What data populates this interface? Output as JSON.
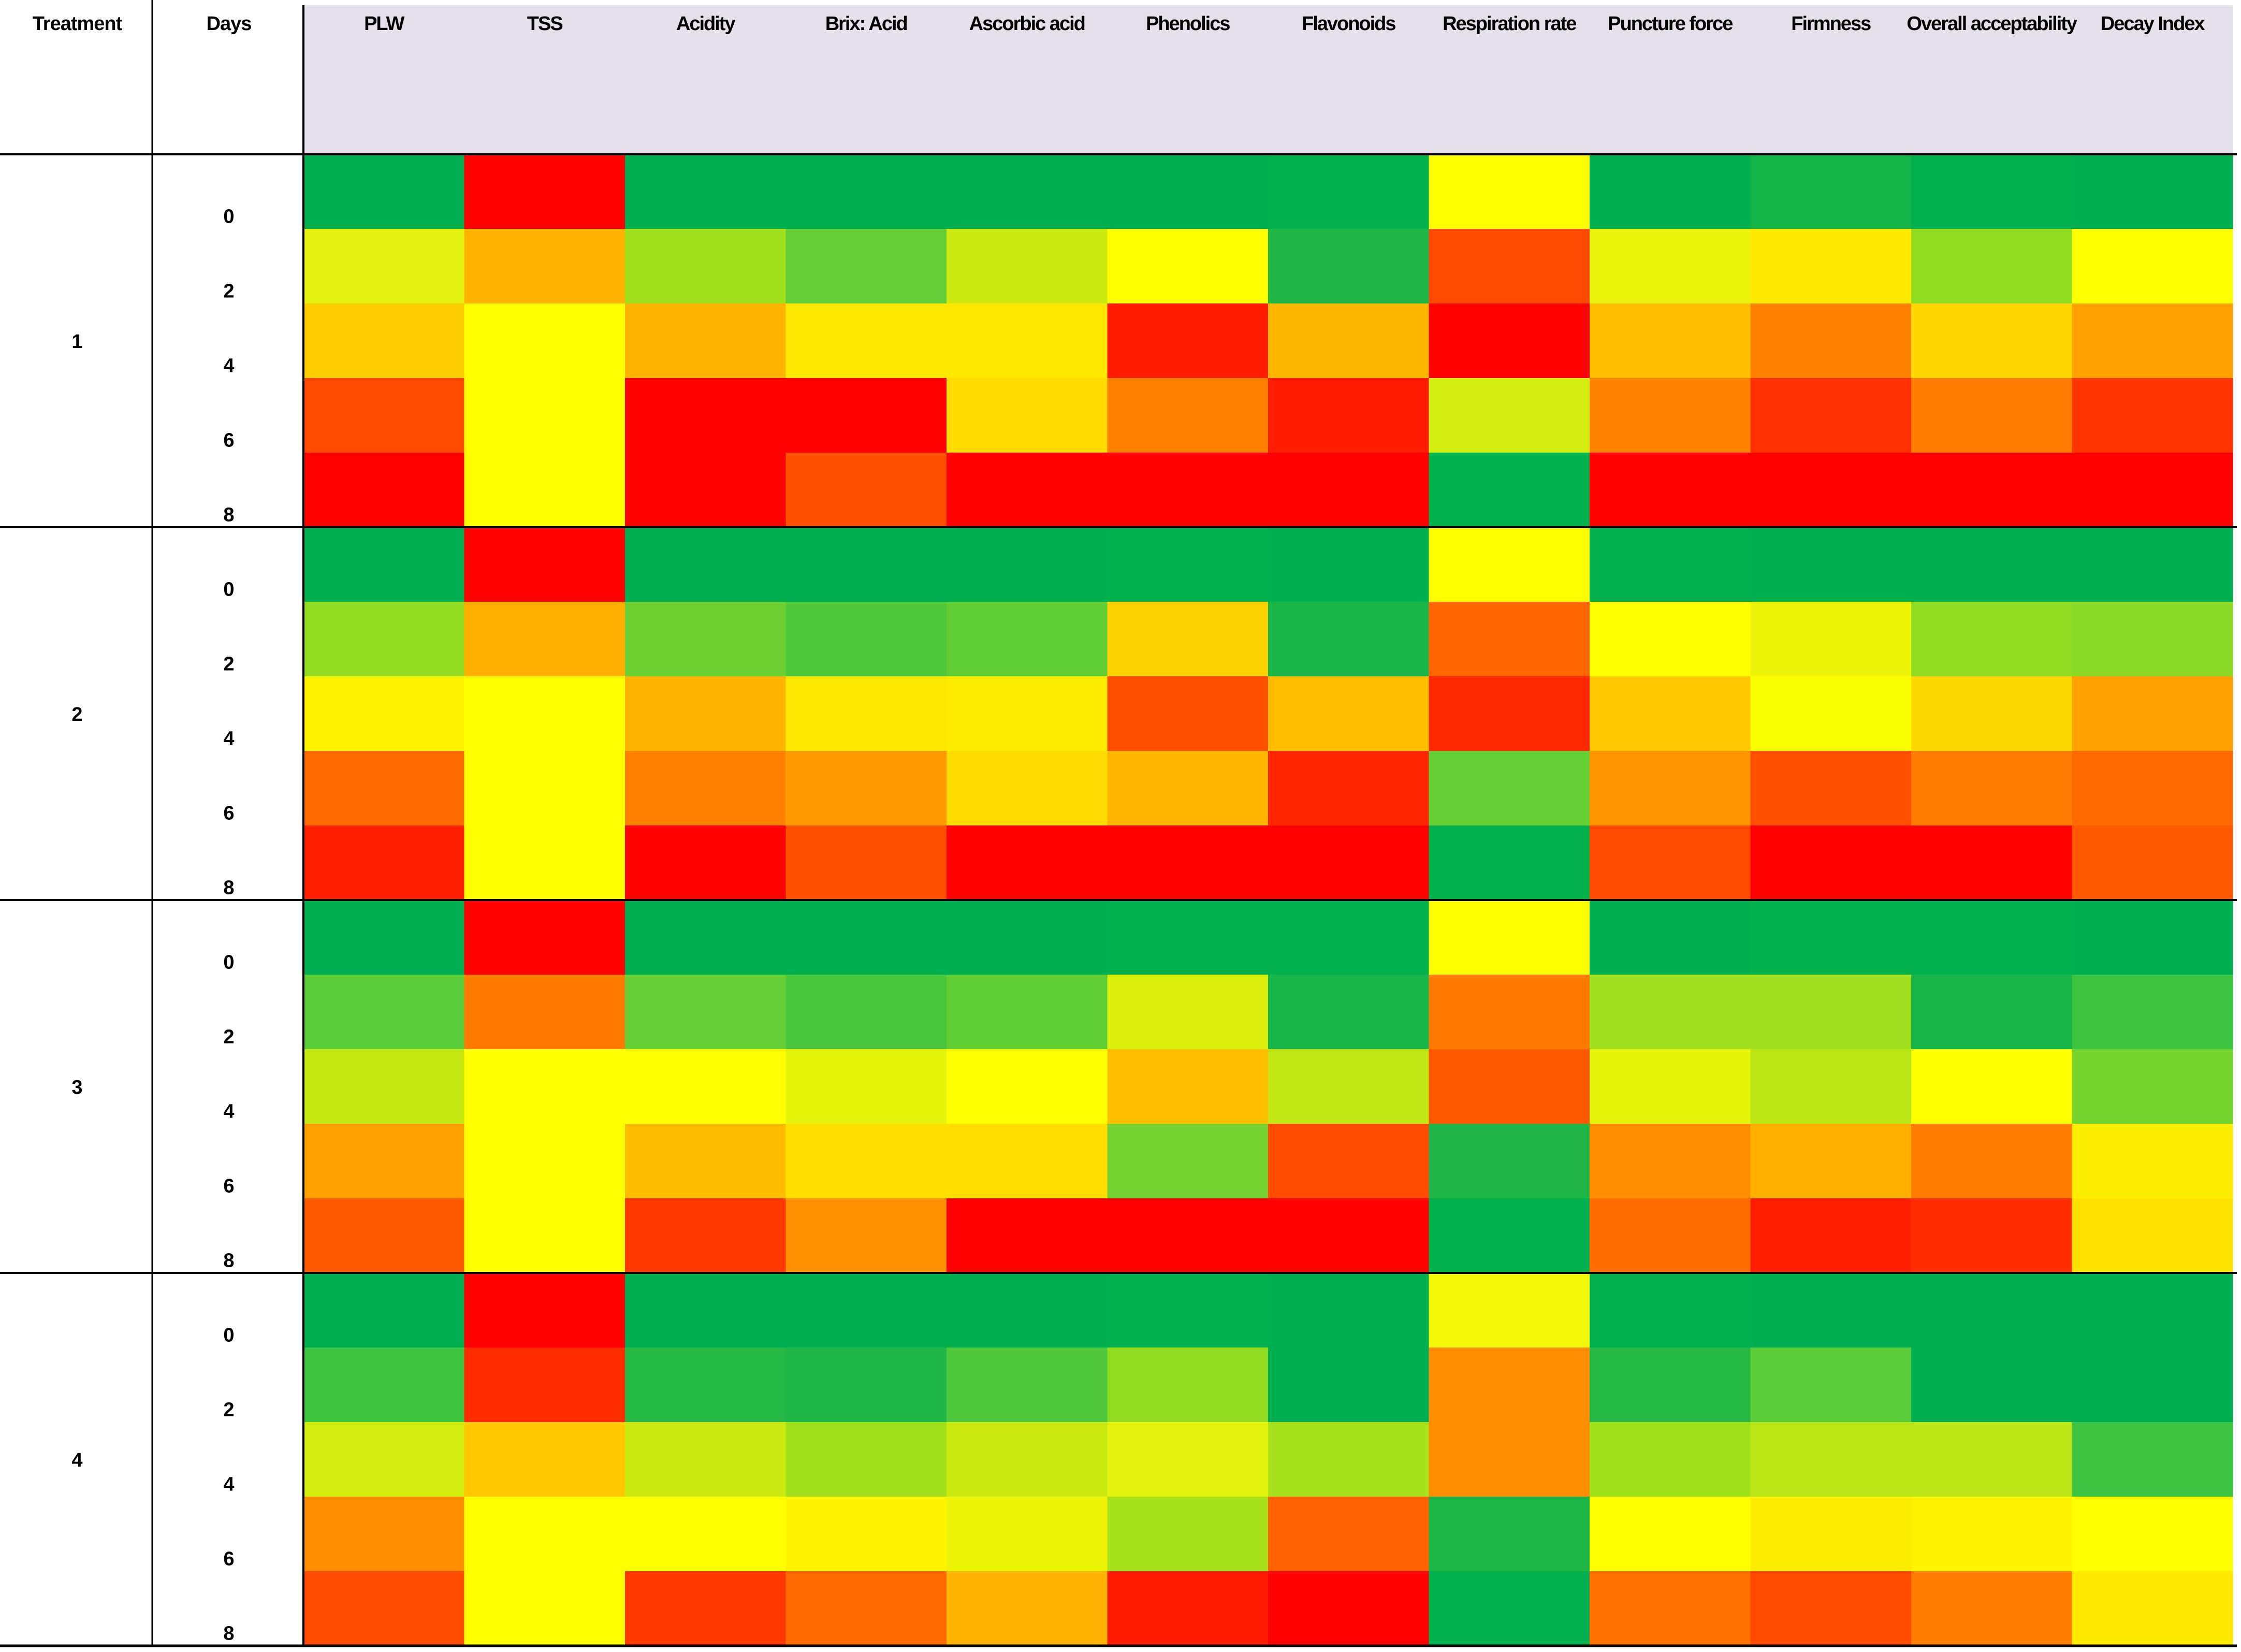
{
  "chart_data": {
    "type": "heatmap",
    "title": "",
    "row_header": "Treatment",
    "day_header": "Days",
    "columns": [
      "PLW",
      "TSS",
      "Acidity",
      "Brix: Acid",
      "Ascorbic acid",
      "Phenolics",
      "Flavonoids",
      "Respiration rate",
      "Puncture force",
      "Firmness",
      "Overall acceptability",
      "Decay Index"
    ],
    "treatments": [
      "1",
      "2",
      "3",
      "4"
    ],
    "days": [
      "0",
      "2",
      "4",
      "6",
      "8"
    ],
    "colors": {
      "header_background": "#E6E0EC",
      "cell_background": "#FFFFFF",
      "gridlines": "#000000",
      "scale": [
        "#00B050",
        "#FFFF00",
        "#FF0000"
      ]
    },
    "cell_colors": [
      [
        [
          "#00B050",
          "#FF0000",
          "#00B050",
          "#00B050",
          "#00B050",
          "#00B050",
          "#02B14D",
          "#FFFF00",
          "#00B050",
          "#12B448",
          "#02B14D",
          "#00B050"
        ],
        [
          "#E6F310",
          "#FFB300",
          "#A2E11E",
          "#64CE35",
          "#CCEB10",
          "#FFFF00",
          "#1FB547",
          "#FF4A00",
          "#EBF40D",
          "#FFEA00",
          "#92DB23",
          "#FFFF00"
        ],
        [
          "#FFCE00",
          "#FFFF00",
          "#FFB500",
          "#FFE800",
          "#FFE800",
          "#FF1C00",
          "#FFB800",
          "#FF0000",
          "#FFBE00",
          "#FF8100",
          "#FFD600",
          "#FFA200"
        ],
        [
          "#FF4A00",
          "#FFFF00",
          "#FF0000",
          "#FF0000",
          "#FFDB00",
          "#FF8100",
          "#FF1C00",
          "#D2ED10",
          "#FF8200",
          "#FF3000",
          "#FF7C00",
          "#FF3400"
        ],
        [
          "#FF0000",
          "#FFFF00",
          "#FF0000",
          "#FF5100",
          "#FF0000",
          "#FF0000",
          "#FF0000",
          "#02B14D",
          "#FF0000",
          "#FF0000",
          "#FF0000",
          "#FF0000"
        ]
      ],
      [
        [
          "#00B050",
          "#FF0000",
          "#00B050",
          "#00B050",
          "#00B050",
          "#02B14D",
          "#00B050",
          "#FFFF00",
          "#02B14D",
          "#00B050",
          "#00B050",
          "#00B050"
        ],
        [
          "#92DB23",
          "#FFB000",
          "#6CD033",
          "#4FC93B",
          "#60CD34",
          "#FFD300",
          "#18B549",
          "#FF6500",
          "#FFFF00",
          "#EEF509",
          "#92DB23",
          "#8CD925"
        ],
        [
          "#FFF300",
          "#FFFF00",
          "#FFB500",
          "#FFE800",
          "#FFEE00",
          "#FF5000",
          "#FFBE00",
          "#FF2800",
          "#FFC800",
          "#FAFC00",
          "#FFD800",
          "#FF9F00"
        ],
        [
          "#FF6A00",
          "#FFFF00",
          "#FF8100",
          "#FF9A00",
          "#FFDA00",
          "#FFB600",
          "#FF2600",
          "#66CF35",
          "#FF9600",
          "#FF4F00",
          "#FF7C00",
          "#FF6A00"
        ],
        [
          "#FF2000",
          "#FFFF00",
          "#FF0000",
          "#FF5100",
          "#FF0000",
          "#FF0000",
          "#FF0000",
          "#02B14D",
          "#FF4A00",
          "#FF0000",
          "#FF0000",
          "#FF5A00"
        ]
      ],
      [
        [
          "#00B050",
          "#FF0000",
          "#00B050",
          "#00B050",
          "#00B050",
          "#02B14D",
          "#02B14D",
          "#FFFF00",
          "#00B050",
          "#03B24C",
          "#02B14D",
          "#00B050"
        ],
        [
          "#5ACC38",
          "#FF7B00",
          "#66CF35",
          "#48C73E",
          "#60CD34",
          "#DAF00C",
          "#18B549",
          "#FF7A00",
          "#A1E01E",
          "#A1E01E",
          "#19B549",
          "#3DC441"
        ],
        [
          "#C8EA14",
          "#FFFF00",
          "#FFFF00",
          "#E7F40C",
          "#FFFF00",
          "#FFBF00",
          "#C1E816",
          "#FF5A00",
          "#E7F40C",
          "#BAE617",
          "#FFFF00",
          "#77D42F"
        ],
        [
          "#FFA000",
          "#FFFF00",
          "#FFBC00",
          "#FFDE00",
          "#FFDE00",
          "#74D330",
          "#FF4C00",
          "#1FB547",
          "#FF8E00",
          "#FFB000",
          "#FF7C00",
          "#FFEE00"
        ],
        [
          "#FF5A00",
          "#FFFF00",
          "#FF3800",
          "#FF9000",
          "#FF0000",
          "#FF0000",
          "#FF0000",
          "#02B14D",
          "#FF6C00",
          "#FF2000",
          "#FF2C00",
          "#FFE100"
        ]
      ],
      [
        [
          "#00B050",
          "#FF0000",
          "#00B050",
          "#00B050",
          "#00B050",
          "#02B14D",
          "#00B050",
          "#F3F70A",
          "#02B14D",
          "#00B050",
          "#00B050",
          "#00B050"
        ],
        [
          "#3DC441",
          "#FF2C00",
          "#25B845",
          "#1DB647",
          "#4FC93B",
          "#92DB23",
          "#00B050",
          "#FF8F00",
          "#26B845",
          "#5ACC38",
          "#00B050",
          "#00B050"
        ],
        [
          "#D2ED10",
          "#FFC800",
          "#CBEB13",
          "#A2E11E",
          "#CBEB13",
          "#E6F30F",
          "#A7E21C",
          "#FF8F00",
          "#A2E11E",
          "#BAE617",
          "#BAE617",
          "#3DC441"
        ],
        [
          "#FF8F00",
          "#FFFF00",
          "#FFFF00",
          "#FFF300",
          "#EEF509",
          "#A8E21C",
          "#FF6200",
          "#1DB647",
          "#FFFF00",
          "#FFEE00",
          "#FFF300",
          "#FFFF00"
        ],
        [
          "#FF4B00",
          "#FFFF00",
          "#FF3800",
          "#FF6A00",
          "#FFB300",
          "#FF1C00",
          "#FF0000",
          "#02B14D",
          "#FF7200",
          "#FF4A00",
          "#FF7C00",
          "#FFEA00"
        ]
      ]
    ]
  }
}
